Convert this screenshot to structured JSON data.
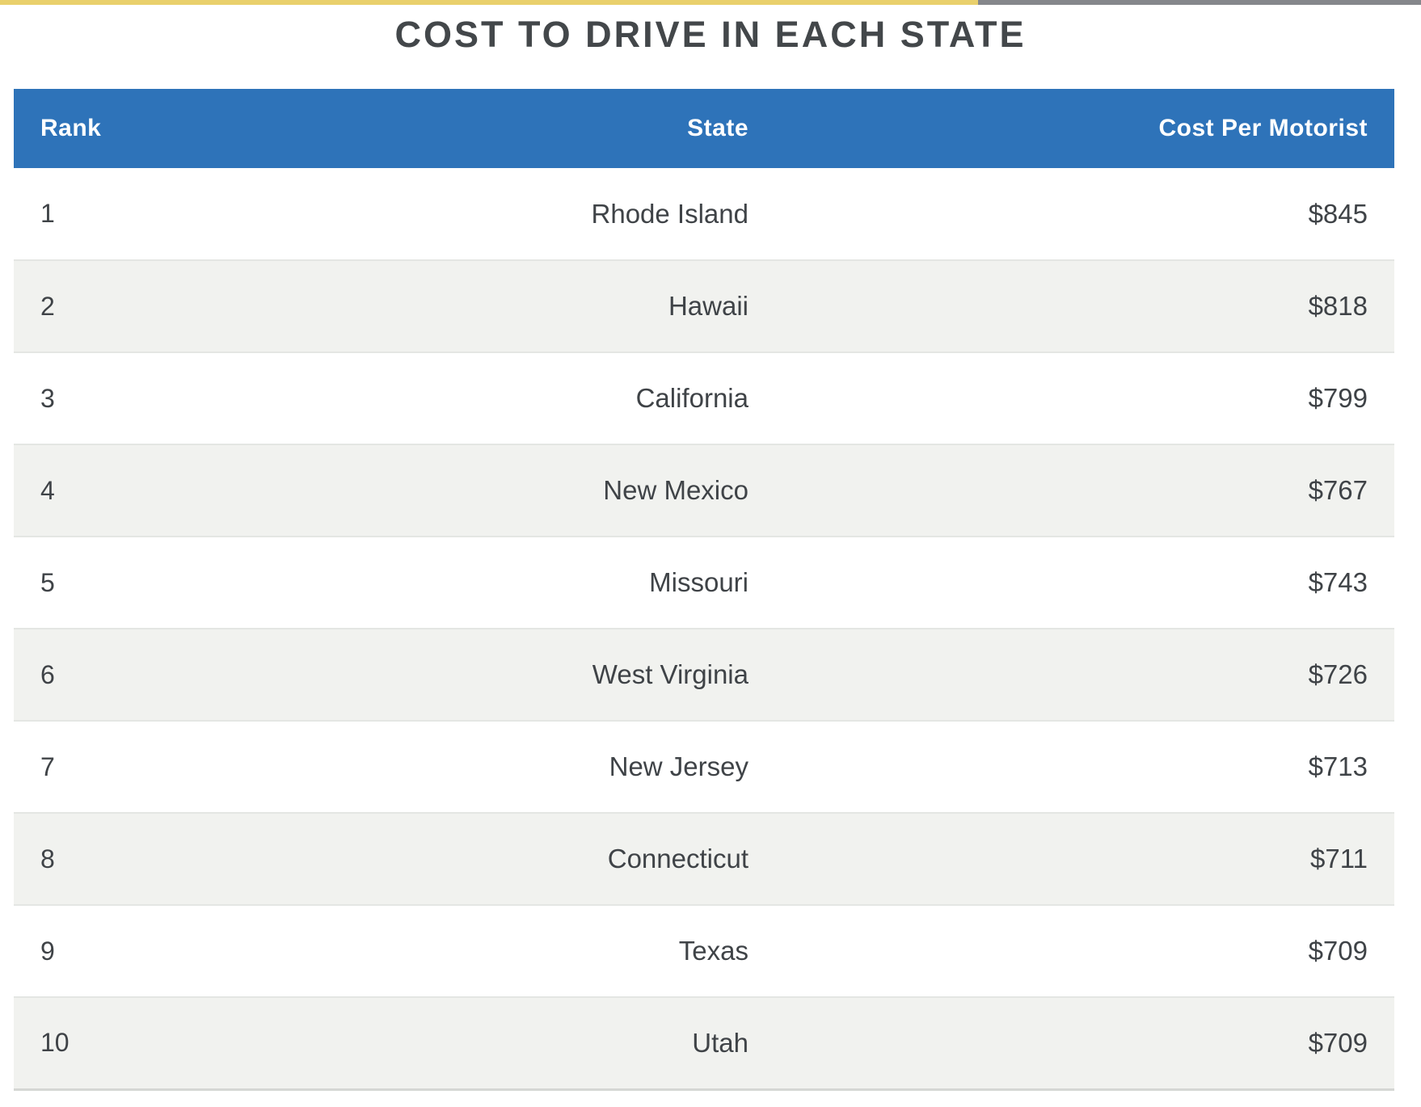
{
  "page": {
    "title": "COST TO DRIVE IN EACH STATE",
    "accent_colors": {
      "yellow": "#e9d06c",
      "gray": "#85878b"
    }
  },
  "table": {
    "header_bg": "#2e73b9",
    "stripe_bg": "#f1f2ef",
    "columns": {
      "rank": "Rank",
      "state": "State",
      "cost": "Cost Per Motorist"
    },
    "rows": [
      {
        "rank": "1",
        "state": "Rhode Island",
        "cost": "$845"
      },
      {
        "rank": "2",
        "state": "Hawaii",
        "cost": "$818"
      },
      {
        "rank": "3",
        "state": "California",
        "cost": "$799"
      },
      {
        "rank": "4",
        "state": "New Mexico",
        "cost": "$767"
      },
      {
        "rank": "5",
        "state": "Missouri",
        "cost": "$743"
      },
      {
        "rank": "6",
        "state": "West Virginia",
        "cost": "$726"
      },
      {
        "rank": "7",
        "state": "New Jersey",
        "cost": "$713"
      },
      {
        "rank": "8",
        "state": "Connecticut",
        "cost": "$711"
      },
      {
        "rank": "9",
        "state": "Texas",
        "cost": "$709"
      },
      {
        "rank": "10",
        "state": "Utah",
        "cost": "$709"
      }
    ]
  },
  "chart_data": {
    "type": "table",
    "title": "COST TO DRIVE IN EACH STATE",
    "columns": [
      "Rank",
      "State",
      "Cost Per Motorist"
    ],
    "categories": [
      "Rhode Island",
      "Hawaii",
      "California",
      "New Mexico",
      "Missouri",
      "West Virginia",
      "New Jersey",
      "Connecticut",
      "Texas",
      "Utah"
    ],
    "values": [
      845,
      818,
      799,
      767,
      743,
      726,
      713,
      711,
      709,
      709
    ],
    "value_unit": "USD per motorist",
    "layout_hints": {
      "striped_rows": true,
      "header_style": "blue-band",
      "rank_ascending": true
    }
  }
}
